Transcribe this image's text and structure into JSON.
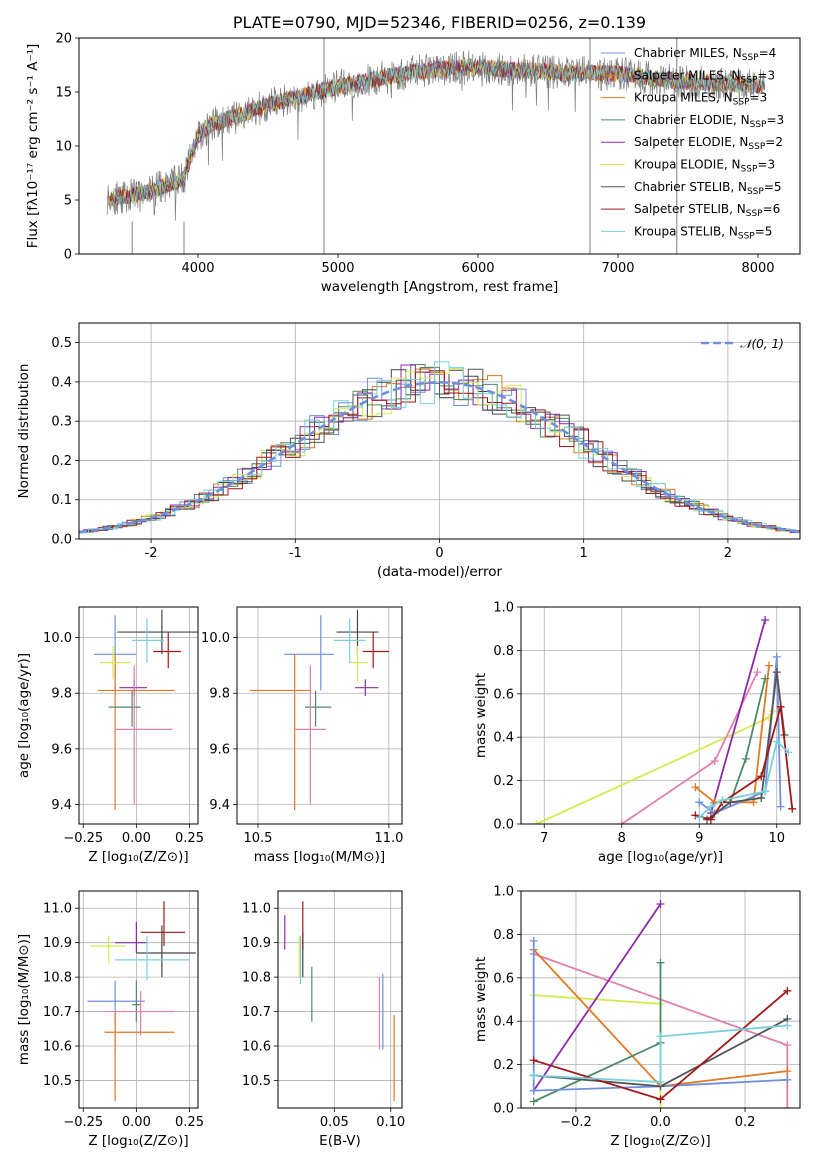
{
  "colors": {
    "blue": "#6f8fdf",
    "orange": "#e07a26",
    "gray": "#444444",
    "green": "#4f8a67",
    "purple": "#8e2aa8",
    "yellow": "#d6e850",
    "dgray": "#555555",
    "red": "#a01818",
    "cyan": "#79d0db",
    "pink": "#e080b0",
    "lgray": "#7f7f7f",
    "grid": "#b0b0b0"
  },
  "chart_data": [
    {
      "id": "spectrum",
      "type": "line",
      "title": "PLATE=0790, MJD=52346, FIBERID=0256, z=0.139",
      "xlabel": "wavelength [Angstrom, rest frame]",
      "ylabel": "Flux [fλ10⁻¹⁷ erg cm⁻² s⁻¹ A⁻¹]",
      "xlim": [
        3150,
        8300
      ],
      "ylim": [
        0,
        20
      ],
      "xticks": [
        4000,
        5000,
        6000,
        7000,
        8000
      ],
      "yticks": [
        0,
        5,
        10,
        15,
        20
      ],
      "grid": false,
      "legend_position": "top-right",
      "continuum": {
        "x": [
          3350,
          3500,
          3700,
          3900,
          4000,
          4100,
          4300,
          4500,
          4800,
          5000,
          5200,
          5500,
          5800,
          6000,
          6300,
          6600,
          7000,
          7400,
          7700,
          8050
        ],
        "y": [
          5.2,
          5.3,
          6.0,
          7.0,
          11.0,
          12.0,
          12.8,
          13.8,
          14.8,
          15.5,
          16.0,
          16.8,
          17.2,
          17.3,
          17.0,
          16.8,
          16.7,
          16.0,
          15.8,
          15.6
        ]
      },
      "spikes": [
        {
          "x": 4900,
          "y": [
            0,
            20
          ]
        },
        {
          "x": 6800,
          "y": [
            0,
            20
          ]
        },
        {
          "x": 7420,
          "y": [
            0,
            20
          ]
        },
        {
          "x": 3530,
          "y": [
            0,
            3
          ]
        },
        {
          "x": 3900,
          "y": [
            0,
            3
          ]
        }
      ],
      "series": [
        {
          "name": "Chabrier MILES, N",
          "sub": "SSP",
          "suffix": "=4",
          "color": "blue"
        },
        {
          "name": "Salpeter MILES, N",
          "sub": "SSP",
          "suffix": "=3",
          "color": "orange"
        },
        {
          "name": "Kroupa MILES, N",
          "sub": "SSP",
          "suffix": "=3",
          "color": "orange"
        },
        {
          "name": "Chabrier ELODIE, N",
          "sub": "SSP",
          "suffix": "=3",
          "color": "green"
        },
        {
          "name": "Salpeter ELODIE, N",
          "sub": "SSP",
          "suffix": "=2",
          "color": "purple"
        },
        {
          "name": "Kroupa ELODIE, N",
          "sub": "SSP",
          "suffix": "=3",
          "color": "yellow"
        },
        {
          "name": "Chabrier STELIB, N",
          "sub": "SSP",
          "suffix": "=5",
          "color": "dgray"
        },
        {
          "name": "Salpeter STELIB, N",
          "sub": "SSP",
          "suffix": "=6",
          "color": "red"
        },
        {
          "name": "Kroupa STELIB, N",
          "sub": "SSP",
          "suffix": "=5",
          "color": "cyan"
        }
      ]
    },
    {
      "id": "residuals",
      "type": "line",
      "xlabel": "(data-model)/error",
      "ylabel": "Normed distribution",
      "xlim": [
        -2.5,
        2.5
      ],
      "ylim": [
        0,
        0.55
      ],
      "xticks": [
        -2,
        -1,
        0,
        1,
        2
      ],
      "yticks": [
        0.0,
        0.1,
        0.2,
        0.3,
        0.4,
        0.5
      ],
      "grid": true,
      "legend_position": "top-right",
      "legend_label": "𝒩(0, 1)",
      "gauss_color": "blue",
      "hist_colors": [
        "blue",
        "orange",
        "gray",
        "green",
        "purple",
        "yellow",
        "dgray",
        "red",
        "cyan"
      ],
      "bin_width": 0.1
    },
    {
      "id": "age_z",
      "type": "scatter",
      "xlabel": "Z [log₁₀(Z/Z⊙)]",
      "ylabel": "age  [log₁₀(age/yr)]",
      "xlim": [
        -0.27,
        0.29
      ],
      "ylim": [
        9.33,
        10.11
      ],
      "xticks": [
        -0.25,
        0.0,
        0.25
      ],
      "xticklabels": [
        "−0.25",
        "0.00",
        "0.25"
      ],
      "yticks": [
        9.4,
        9.6,
        9.8,
        10.0
      ],
      "grid": true,
      "points": [
        {
          "color": "blue",
          "x": -0.1,
          "xe": [
            -0.2,
            0.0
          ],
          "y": 9.94,
          "ye": [
            9.8,
            10.08
          ]
        },
        {
          "color": "orange",
          "x": -0.1,
          "xe": [
            -0.18,
            0.18
          ],
          "y": 9.81,
          "ye": [
            9.38,
            9.94
          ]
        },
        {
          "color": "gray",
          "x": 0.12,
          "xe": [
            -0.09,
            0.29
          ],
          "y": 10.02,
          "ye": [
            9.94,
            10.1
          ]
        },
        {
          "color": "green",
          "x": -0.02,
          "xe": [
            -0.13,
            0.02
          ],
          "y": 9.75,
          "ye": [
            9.68,
            9.81
          ]
        },
        {
          "color": "purple",
          "x": -0.01,
          "xe": [
            -0.08,
            0.05
          ],
          "y": 9.82,
          "ye": [
            9.79,
            9.85
          ]
        },
        {
          "color": "yellow",
          "x": -0.11,
          "xe": [
            -0.17,
            -0.03
          ],
          "y": 9.91,
          "ye": [
            9.85,
            9.97
          ]
        },
        {
          "color": "red",
          "x": 0.15,
          "xe": [
            0.08,
            0.21
          ],
          "y": 9.95,
          "ye": [
            9.89,
            10.02
          ]
        },
        {
          "color": "cyan",
          "x": 0.05,
          "xe": [
            -0.02,
            0.13
          ],
          "y": 9.99,
          "ye": [
            9.91,
            10.07
          ]
        },
        {
          "color": "pink",
          "x": -0.01,
          "xe": [
            -0.1,
            0.17
          ],
          "y": 9.67,
          "ye": [
            9.4,
            9.9
          ]
        }
      ]
    },
    {
      "id": "age_mass",
      "type": "scatter",
      "xlabel": "mass [log₁₀(M/M⊙)]",
      "ylabel": "",
      "xlim": [
        10.42,
        11.05
      ],
      "ylim": [
        9.33,
        10.11
      ],
      "xticks": [
        10.5,
        11.0
      ],
      "xticklabels": [
        "10.5",
        "11.0"
      ],
      "yticks": [
        9.4,
        9.6,
        9.8,
        10.0
      ],
      "grid": true,
      "points": [
        {
          "color": "blue",
          "x": 10.74,
          "xe": [
            10.6,
            10.79
          ],
          "y": 9.94,
          "ye": [
            9.81,
            10.08
          ]
        },
        {
          "color": "orange",
          "x": 10.64,
          "xe": [
            10.47,
            10.7
          ],
          "y": 9.81,
          "ye": [
            9.38,
            9.94
          ]
        },
        {
          "color": "gray",
          "x": 10.88,
          "xe": [
            10.8,
            10.96
          ],
          "y": 10.02,
          "ye": [
            9.94,
            10.1
          ]
        },
        {
          "color": "green",
          "x": 10.72,
          "xe": [
            10.68,
            10.78
          ],
          "y": 9.75,
          "ye": [
            9.68,
            9.81
          ]
        },
        {
          "color": "purple",
          "x": 10.91,
          "xe": [
            10.87,
            10.96
          ],
          "y": 9.82,
          "ye": [
            9.79,
            9.85
          ]
        },
        {
          "color": "yellow",
          "x": 10.88,
          "xe": [
            10.85,
            10.92
          ],
          "y": 9.91,
          "ye": [
            9.84,
            9.97
          ]
        },
        {
          "color": "red",
          "x": 10.94,
          "xe": [
            10.9,
            11.0
          ],
          "y": 9.95,
          "ye": [
            9.89,
            10.02
          ]
        },
        {
          "color": "cyan",
          "x": 10.85,
          "xe": [
            10.79,
            10.91
          ],
          "y": 9.99,
          "ye": [
            9.91,
            10.07
          ]
        },
        {
          "color": "pink",
          "x": 10.7,
          "xe": [
            10.64,
            10.76
          ],
          "y": 9.67,
          "ye": [
            9.4,
            9.9
          ]
        }
      ]
    },
    {
      "id": "mass_z",
      "type": "scatter",
      "xlabel": "Z [log₁₀(Z/Z⊙)]",
      "ylabel": "mass [log₁₀(M/M⊙)]",
      "xlim": [
        -0.27,
        0.29
      ],
      "ylim": [
        10.42,
        11.05
      ],
      "xticks": [
        -0.25,
        0.0,
        0.25
      ],
      "xticklabels": [
        "−0.25",
        "0.00",
        "0.25"
      ],
      "yticks": [
        10.5,
        10.6,
        10.7,
        10.8,
        10.9,
        11.0
      ],
      "grid": true,
      "points": [
        {
          "color": "blue",
          "x": -0.1,
          "xe": [
            -0.23,
            0.04
          ],
          "y": 10.73,
          "ye": [
            10.58,
            10.79
          ]
        },
        {
          "color": "orange",
          "x": -0.1,
          "xe": [
            -0.15,
            0.18
          ],
          "y": 10.64,
          "ye": [
            10.44,
            10.7
          ]
        },
        {
          "color": "gray",
          "x": 0.12,
          "xe": [
            0.0,
            0.28
          ],
          "y": 10.87,
          "ye": [
            10.8,
            10.95
          ]
        },
        {
          "color": "green",
          "x": 0.0,
          "xe": [
            -0.02,
            0.02
          ],
          "y": 10.72,
          "ye": [
            10.67,
            10.79
          ]
        },
        {
          "color": "purple",
          "x": 0.0,
          "xe": [
            -0.1,
            0.05
          ],
          "y": 10.9,
          "ye": [
            10.87,
            10.96
          ]
        },
        {
          "color": "yellow",
          "x": -0.13,
          "xe": [
            -0.22,
            -0.05
          ],
          "y": 10.89,
          "ye": [
            10.84,
            10.92
          ]
        },
        {
          "color": "red",
          "x": 0.13,
          "xe": [
            0.02,
            0.23
          ],
          "y": 10.93,
          "ye": [
            10.89,
            11.02
          ]
        },
        {
          "color": "cyan",
          "x": 0.05,
          "xe": [
            -0.1,
            0.25
          ],
          "y": 10.85,
          "ye": [
            10.79,
            10.92
          ]
        },
        {
          "color": "pink",
          "x": 0.02,
          "xe": [
            -0.15,
            0.18
          ],
          "y": 10.7,
          "ye": [
            10.63,
            10.76
          ]
        }
      ]
    },
    {
      "id": "mass_ebv",
      "type": "scatter",
      "xlabel": "E(B-V)",
      "ylabel": "",
      "xlim": [
        0.0,
        0.11
      ],
      "ylim": [
        10.42,
        11.05
      ],
      "xticks": [
        0.05,
        0.1
      ],
      "xticklabels": [
        "0.05",
        "0.10"
      ],
      "yticks": [
        10.5,
        10.6,
        10.7,
        10.8,
        10.9,
        11.0
      ],
      "grid": true,
      "points": [
        {
          "color": "blue",
          "x": 0.093,
          "y": 10.73,
          "ye": [
            10.59,
            10.81
          ]
        },
        {
          "color": "orange",
          "x": 0.103,
          "y": 10.62,
          "ye": [
            10.44,
            10.69
          ]
        },
        {
          "color": "gray",
          "x": 0.022,
          "y": 10.86,
          "ye": [
            10.8,
            10.93
          ]
        },
        {
          "color": "green",
          "x": 0.03,
          "y": 10.75,
          "ye": [
            10.67,
            10.83
          ]
        },
        {
          "color": "purple",
          "x": 0.006,
          "y": 10.93,
          "ye": [
            10.88,
            10.98
          ]
        },
        {
          "color": "yellow",
          "x": 0.019,
          "y": 10.86,
          "ye": [
            10.8,
            10.92
          ]
        },
        {
          "color": "red",
          "x": 0.022,
          "y": 10.95,
          "ye": [
            10.88,
            11.02
          ]
        },
        {
          "color": "cyan",
          "x": 0.02,
          "y": 10.85,
          "ye": [
            10.78,
            10.92
          ]
        },
        {
          "color": "pink",
          "x": 0.09,
          "y": 10.73,
          "ye": [
            10.59,
            10.8
          ]
        }
      ]
    },
    {
      "id": "weight_age",
      "type": "line",
      "xlabel": "age  [log₁₀(age/yr)]",
      "ylabel": "mass weight",
      "xlim": [
        6.7,
        10.3
      ],
      "ylim": [
        0,
        1.0
      ],
      "xticks": [
        7,
        8,
        9,
        10
      ],
      "yticks": [
        0.0,
        0.2,
        0.4,
        0.6,
        0.8,
        1.0
      ],
      "grid": true,
      "series": [
        {
          "color": "yellow",
          "x": [
            6.9,
            9.9,
            9.95
          ],
          "y": [
            0.0,
            0.49,
            0.52
          ]
        },
        {
          "color": "pink",
          "x": [
            8.0,
            9.2,
            9.75
          ],
          "y": [
            0.0,
            0.29,
            0.7
          ]
        },
        {
          "color": "purple",
          "x": [
            9.15,
            9.85
          ],
          "y": [
            0.05,
            0.94
          ]
        },
        {
          "color": "orange",
          "x": [
            8.95,
            9.2,
            9.7,
            9.9
          ],
          "y": [
            0.17,
            0.1,
            0.1,
            0.73
          ]
        },
        {
          "color": "green",
          "x": [
            9.15,
            9.4,
            9.6,
            9.85
          ],
          "y": [
            0.03,
            0.1,
            0.3,
            0.67
          ]
        },
        {
          "color": "blue",
          "x": [
            9.0,
            9.2,
            9.85,
            10.0,
            10.05
          ],
          "y": [
            0.1,
            0.05,
            0.15,
            0.77,
            0.08
          ]
        },
        {
          "color": "dgray",
          "x": [
            9.1,
            9.4,
            9.8,
            10.0,
            10.1
          ],
          "y": [
            0.02,
            0.1,
            0.12,
            0.7,
            0.41
          ]
        },
        {
          "color": "red",
          "x": [
            8.95,
            9.15,
            9.3,
            9.8,
            10.05,
            10.2
          ],
          "y": [
            0.04,
            0.02,
            0.1,
            0.22,
            0.54,
            0.07
          ]
        },
        {
          "color": "cyan",
          "x": [
            9.0,
            9.15,
            9.3,
            9.85,
            10.0,
            10.15
          ],
          "y": [
            0.03,
            0.08,
            0.11,
            0.15,
            0.38,
            0.33
          ]
        }
      ]
    },
    {
      "id": "weight_z",
      "type": "line",
      "xlabel": "Z [log₁₀(Z/Z⊙)]",
      "ylabel": "mass weight",
      "xlim": [
        -0.33,
        0.33
      ],
      "ylim": [
        0,
        1.0
      ],
      "xticks": [
        -0.2,
        0.0,
        0.2
      ],
      "xticklabels": [
        "−0.2",
        "0.0",
        "0.2"
      ],
      "yticks": [
        0.0,
        0.2,
        0.4,
        0.6,
        0.8,
        1.0
      ],
      "grid": true,
      "series": [
        {
          "color": "yellow",
          "x": [
            -0.3,
            0.0,
            0.0
          ],
          "y": [
            0.52,
            0.48,
            0.0
          ]
        },
        {
          "color": "pink",
          "x": [
            -0.3,
            0.3,
            0.3
          ],
          "y": [
            0.71,
            0.29,
            0.0
          ]
        },
        {
          "color": "purple",
          "x": [
            -0.3,
            0.0
          ],
          "y": [
            0.08,
            0.94
          ]
        },
        {
          "color": "orange",
          "x": [
            -0.3,
            0.0,
            0.3
          ],
          "y": [
            0.73,
            0.1,
            0.17
          ]
        },
        {
          "color": "green",
          "x": [
            -0.3,
            0.0,
            0.0
          ],
          "y": [
            0.03,
            0.3,
            0.67
          ]
        },
        {
          "color": "blue",
          "x": [
            -0.3,
            -0.3,
            0.0,
            0.3
          ],
          "y": [
            0.77,
            0.08,
            0.1,
            0.13
          ]
        },
        {
          "color": "dgray",
          "x": [
            -0.3,
            0.0,
            0.3
          ],
          "y": [
            0.15,
            0.1,
            0.41
          ]
        },
        {
          "color": "red",
          "x": [
            -0.3,
            0.0,
            0.3
          ],
          "y": [
            0.22,
            0.04,
            0.54
          ]
        },
        {
          "color": "cyan",
          "x": [
            -0.3,
            0.0,
            0.0,
            0.3
          ],
          "y": [
            0.15,
            0.12,
            0.33,
            0.38
          ]
        }
      ]
    }
  ]
}
